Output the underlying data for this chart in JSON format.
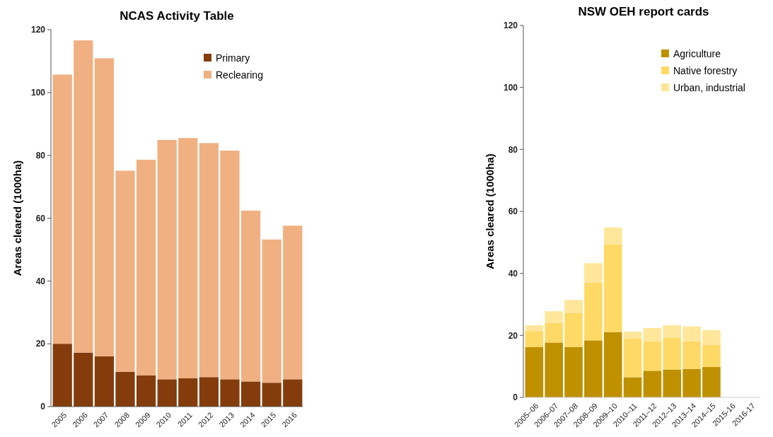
{
  "chart_data": [
    {
      "type": "bar",
      "title": "NCAS Activity Table",
      "ylabel": "Areas cleared (1000ha)",
      "stacked": true,
      "legend": "top right",
      "grid": false,
      "categories": [
        "2005",
        "2006",
        "2007",
        "2008",
        "2009",
        "2010",
        "2011",
        "2012",
        "2013",
        "2014",
        "2015",
        "2016"
      ],
      "ylim": [
        0,
        120
      ],
      "yticks": [
        0,
        20,
        40,
        60,
        80,
        100,
        120
      ],
      "series": [
        {
          "name": "Primary",
          "color": "#843c0c",
          "values": [
            20.0,
            17.2,
            16.0,
            11.1,
            9.9,
            8.7,
            9.0,
            9.4,
            8.7,
            8.0,
            7.6,
            8.7
          ]
        },
        {
          "name": "Reclearing",
          "color": "#f0b081",
          "values": [
            85.7,
            99.4,
            94.9,
            64.0,
            68.7,
            76.2,
            76.5,
            74.5,
            72.8,
            54.4,
            45.6,
            48.9
          ]
        }
      ]
    },
    {
      "type": "bar",
      "title": "NSW OEH report cards",
      "ylabel": "Areas cleared (1000ha)",
      "stacked": true,
      "legend": "top right",
      "grid": false,
      "categories": [
        "2005–06",
        "2006–07",
        "2007–08",
        "2008–09",
        "2009–10",
        "2010–11",
        "2011–12",
        "2012–13",
        "2013–14",
        "2014–15",
        "2015-16",
        "2016-17"
      ],
      "ylim": [
        0,
        120
      ],
      "yticks": [
        0,
        20,
        40,
        60,
        80,
        100,
        120
      ],
      "series": [
        {
          "name": "Agriculture",
          "color": "#bf9000",
          "values": [
            16.2,
            17.7,
            16.2,
            18.4,
            21.1,
            6.5,
            8.6,
            9.0,
            9.2,
            9.8,
            null,
            null
          ]
        },
        {
          "name": "Native forestry",
          "color": "#ffd966",
          "values": [
            5.2,
            6.3,
            11.1,
            18.6,
            28.3,
            12.5,
            9.5,
            10.3,
            8.9,
            7.1,
            null,
            null
          ]
        },
        {
          "name": "Urban, industrial",
          "color": "#ffe699",
          "values": [
            1.9,
            3.8,
            4.1,
            6.3,
            5.4,
            2.2,
            4.3,
            4.0,
            4.8,
            4.8,
            null,
            null
          ]
        }
      ]
    }
  ]
}
